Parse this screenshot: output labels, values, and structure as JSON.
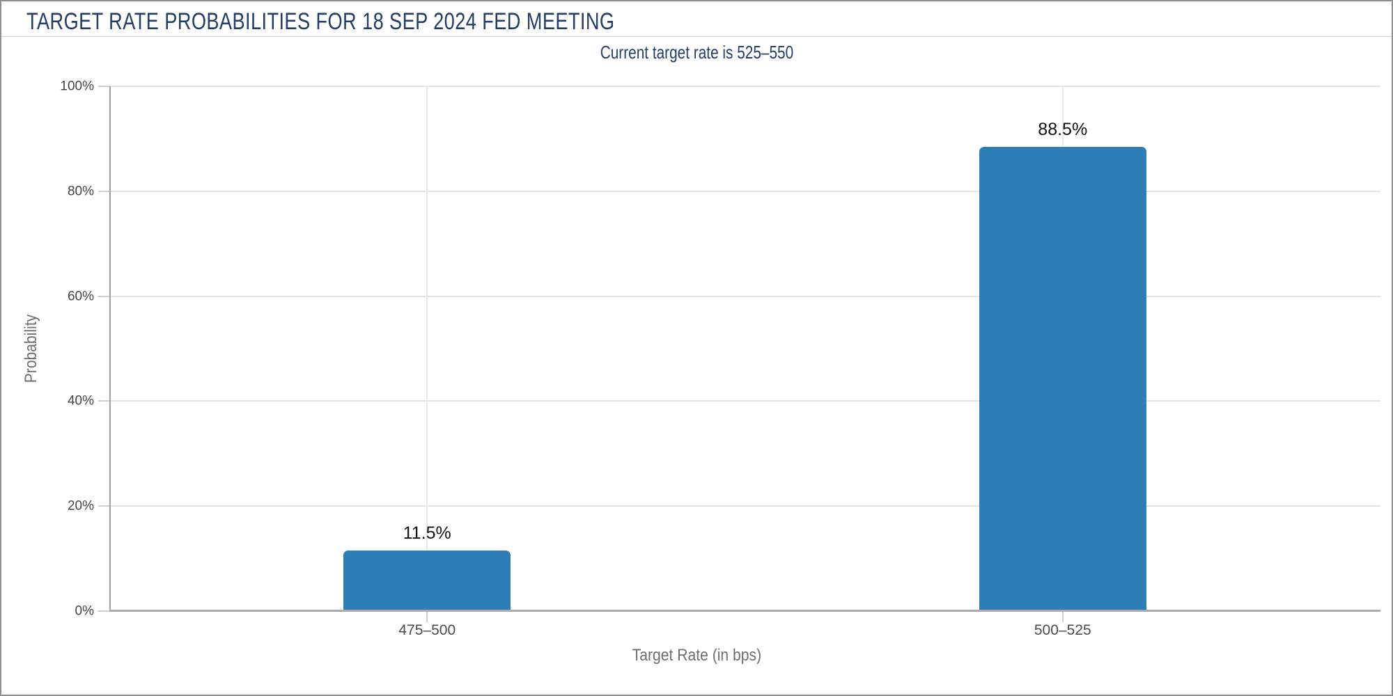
{
  "header": {
    "title": "TARGET RATE PROBABILITIES FOR 18 SEP 2024 FED MEETING",
    "subtitle": "Current target rate is 525–550"
  },
  "chart_data": {
    "type": "bar",
    "title": "TARGET RATE PROBABILITIES FOR 18 SEP 2024 FED MEETING",
    "subtitle": "Current target rate is 525–550",
    "xlabel": "Target Rate (in bps)",
    "ylabel": "Probability",
    "categories": [
      "475–500",
      "500–525"
    ],
    "values": [
      11.5,
      88.5
    ],
    "value_labels": [
      "11.5%",
      "88.5%"
    ],
    "ylim": [
      0,
      100
    ],
    "yticks": [
      0,
      20,
      40,
      60,
      80,
      100
    ],
    "ytick_labels": [
      "0%",
      "20%",
      "40%",
      "60%",
      "80%",
      "100%"
    ],
    "grid": true,
    "legend_position": "none",
    "bar_color": "#2d7db7"
  },
  "style": {
    "title_navy": "#243d66",
    "bar_blue": "#2d7db7",
    "grid_color": "#e4e4e4",
    "axis_line_color": "#ababab",
    "tick_text_color": "#434343",
    "axis_title_color": "#6e6e6e",
    "value_label_color": "#101010",
    "frame_border_color": "#8f8f8f",
    "background": "#ffffff"
  }
}
